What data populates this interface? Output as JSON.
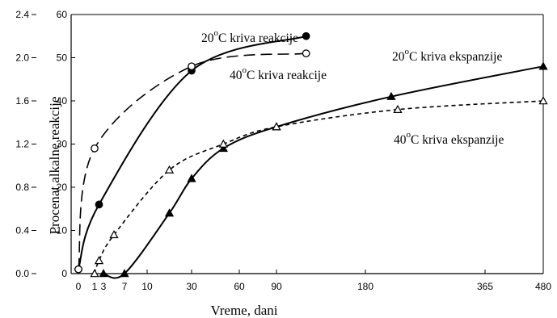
{
  "chart_data": {
    "type": "line",
    "title": "",
    "xlabel": "Vreme,  dani",
    "ylabel": "Procenat alkalne reakcije",
    "x_ticks": [
      "0",
      "1",
      "3",
      "7",
      "10",
      "30",
      "60",
      "90",
      "180",
      "365",
      "480"
    ],
    "y_left_ticks": [
      "0.0",
      "0.4",
      "0.8",
      "1.2",
      "1.6",
      "2.0",
      "2.4"
    ],
    "y_right_ticks": [
      "0",
      "10",
      "20",
      "30",
      "40",
      "50",
      "60"
    ],
    "ylim_left": [
      0,
      2.4
    ],
    "ylim_right": [
      0,
      60
    ],
    "grid": false,
    "series": [
      {
        "key": "r20",
        "name": "20°C  kriva reakcije",
        "label_parts": [
          "20",
          "o",
          "C  kriva reakcije"
        ],
        "axis": "right",
        "line": "solid",
        "marker": "filled-circle",
        "color": "#000000",
        "x": [
          0,
          2,
          30,
          120
        ],
        "y": [
          1,
          16,
          47,
          55
        ]
      },
      {
        "key": "r40",
        "name": "40°C  kriva reakcije",
        "label_parts": [
          "40",
          "o",
          "C   kriva reakcije"
        ],
        "axis": "right",
        "line": "long-dash",
        "marker": "open-circle",
        "color": "#000000",
        "x": [
          0,
          1,
          30,
          120
        ],
        "y": [
          1,
          29,
          48,
          51
        ]
      },
      {
        "key": "e20",
        "name": "20°C kriva ekspanzije",
        "label_parts": [
          "20",
          "o",
          "C kriva ekspanzije"
        ],
        "axis": "right",
        "line": "solid",
        "marker": "filled-triangle",
        "color": "#000000",
        "x": [
          3,
          7,
          20,
          30,
          50,
          90,
          220,
          480
        ],
        "y": [
          0,
          0,
          14,
          22,
          29,
          34,
          41,
          48
        ]
      },
      {
        "key": "e40",
        "name": "40°C kriva ekspanzije",
        "label_parts": [
          "40",
          "o",
          "C kriva ekspanzije"
        ],
        "axis": "right",
        "line": "short-dash",
        "marker": "open-triangle",
        "color": "#000000",
        "x": [
          1,
          2,
          5,
          20,
          50,
          90,
          230,
          480
        ],
        "y": [
          0,
          3,
          9,
          24,
          30,
          34,
          38,
          40
        ]
      }
    ]
  }
}
